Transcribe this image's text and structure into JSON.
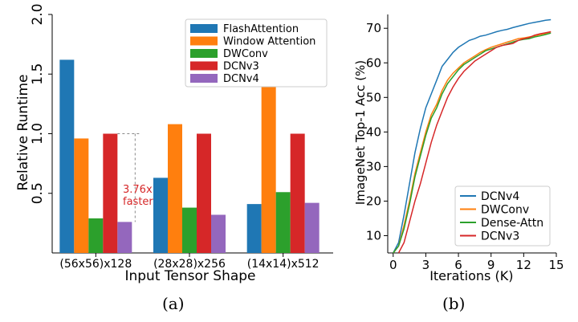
{
  "chart_data": [
    {
      "type": "bar",
      "xlabel": "Input Tensor Shape",
      "ylabel": "Relative Runtime",
      "ylim": [
        0,
        2.0
      ],
      "yticks": [
        "0.5",
        "1.0",
        "1.5",
        "2.0"
      ],
      "categories": [
        "(56x56)x128",
        "(28x28)x256",
        "(14x14)x512"
      ],
      "series": [
        {
          "name": "FlashAttention",
          "color": "#1f77b4",
          "values": [
            1.62,
            0.63,
            0.41
          ]
        },
        {
          "name": "Window Attention",
          "color": "#ff7f0e",
          "values": [
            0.96,
            1.08,
            1.42
          ]
        },
        {
          "name": "DWConv",
          "color": "#2ca02c",
          "values": [
            0.29,
            0.38,
            0.51
          ]
        },
        {
          "name": "DCNv3",
          "color": "#d62728",
          "values": [
            1.0,
            1.0,
            1.0
          ]
        },
        {
          "name": "DCNv4",
          "color": "#9467bd",
          "values": [
            0.26,
            0.32,
            0.42
          ]
        }
      ],
      "legend": "top-right",
      "annotation": {
        "line1": "3.76x",
        "line2": "faster",
        "color": "#d62728"
      },
      "caption": "(a)"
    },
    {
      "type": "line",
      "xlabel": "Iterations (K)",
      "ylabel": "ImageNet Top-1 Acc (%)",
      "xlim": [
        -0.5,
        15
      ],
      "ylim": [
        5,
        74
      ],
      "xticks": [
        0,
        3,
        6,
        9,
        12,
        15
      ],
      "yticks": [
        10,
        20,
        30,
        40,
        50,
        60,
        70
      ],
      "legend": "bottom-right",
      "series": [
        {
          "name": "DCNv4",
          "color": "#1f77b4",
          "x": [
            0,
            0.5,
            1,
            1.5,
            2,
            2.5,
            3,
            3.5,
            4,
            4.5,
            5,
            5.5,
            6,
            6.5,
            7,
            7.5,
            8,
            8.5,
            9,
            9.5,
            10,
            10.5,
            11,
            11.5,
            12,
            12.5,
            13,
            13.5,
            14,
            14.5
          ],
          "y": [
            5,
            8,
            16,
            25,
            34,
            41,
            47,
            51,
            55,
            59,
            61,
            63,
            64.5,
            65.5,
            66.5,
            67,
            67.7,
            68,
            68.5,
            69,
            69.4,
            69.7,
            70.2,
            70.6,
            71,
            71.4,
            71.7,
            72,
            72.3,
            72.5
          ]
        },
        {
          "name": "DWConv",
          "color": "#ff7f0e",
          "x": [
            0,
            0.5,
            1,
            1.5,
            2,
            2.5,
            3,
            3.5,
            4,
            4.5,
            5,
            5.5,
            6,
            6.5,
            7,
            7.5,
            8,
            8.5,
            9,
            9.5,
            10,
            10.5,
            11,
            11.5,
            12,
            12.5,
            13,
            13.5,
            14,
            14.5
          ],
          "y": [
            5,
            7,
            13,
            20,
            28,
            34,
            40,
            45,
            48,
            52,
            55,
            57,
            58.5,
            60,
            61,
            62,
            63,
            63.8,
            64.5,
            65,
            65.5,
            66,
            66.5,
            67,
            67.2,
            67.5,
            67.8,
            68.2,
            68.5,
            69
          ]
        },
        {
          "name": "Dense-Attn",
          "color": "#2ca02c",
          "x": [
            0,
            0.5,
            1,
            1.5,
            2,
            2.5,
            3,
            3.5,
            4,
            4.5,
            5,
            5.5,
            6,
            6.5,
            7,
            7.5,
            8,
            8.5,
            9,
            9.5,
            10,
            10.5,
            11,
            11.5,
            12,
            12.5,
            13,
            13.5,
            14,
            14.5
          ],
          "y": [
            5,
            7,
            12,
            19,
            27,
            33,
            39,
            44,
            47,
            51,
            54,
            56,
            58,
            59.5,
            60.5,
            61.5,
            62.5,
            63.5,
            64,
            64.5,
            65,
            65.5,
            66,
            66.5,
            66.8,
            67,
            67.5,
            67.8,
            68.2,
            68.6
          ]
        },
        {
          "name": "DCNv3",
          "color": "#d62728",
          "x": [
            0.5,
            1,
            1.5,
            2,
            2.5,
            3,
            3.5,
            4,
            4.5,
            5,
            5.5,
            6,
            6.5,
            7,
            7.5,
            8,
            8.5,
            9,
            9.5,
            10,
            10.5,
            11,
            11.5,
            12,
            12.5,
            13,
            13.5,
            14,
            14.5
          ],
          "y": [
            5,
            8,
            14,
            20,
            25,
            31,
            37,
            42,
            46,
            50,
            53,
            55.5,
            57.5,
            59,
            60.5,
            61.5,
            62.5,
            63.5,
            64.5,
            65,
            65.3,
            65.6,
            66.5,
            67,
            67.3,
            68,
            68.4,
            68.7,
            69
          ]
        }
      ],
      "caption": "(b)"
    }
  ]
}
